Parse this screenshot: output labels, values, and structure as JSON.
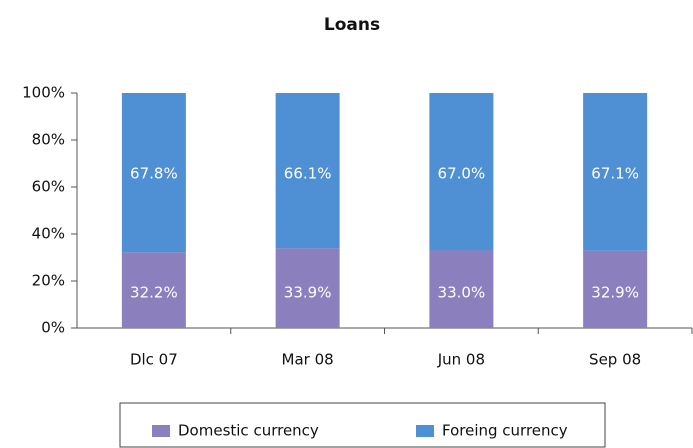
{
  "chart_data": {
    "type": "stacked_bar",
    "title": "Loans",
    "categories": [
      "Dlc 07",
      "Mar 08",
      "Jun 08",
      "Sep 08"
    ],
    "series": [
      {
        "name": "Domestic currency",
        "color": "#8b80bd",
        "values": [
          32.2,
          33.9,
          33.0,
          32.9
        ],
        "value_labels": [
          "32.2%",
          "33.9%",
          "33.0%",
          "32.9%"
        ]
      },
      {
        "name": "Foreing currency",
        "color": "#4f8fd4",
        "values": [
          67.8,
          66.1,
          67.0,
          67.1
        ],
        "value_labels": [
          "67.8%",
          "66.1%",
          "67.0%",
          "67.1%"
        ]
      }
    ],
    "ylim": [
      0,
      100
    ],
    "yticks": [
      {
        "value": 0,
        "label": "0%"
      },
      {
        "value": 20,
        "label": "20%"
      },
      {
        "value": 40,
        "label": "40%"
      },
      {
        "value": 60,
        "label": "60%"
      },
      {
        "value": 80,
        "label": "80%"
      },
      {
        "value": 100,
        "label": "100%"
      }
    ],
    "legend": "bottom"
  }
}
